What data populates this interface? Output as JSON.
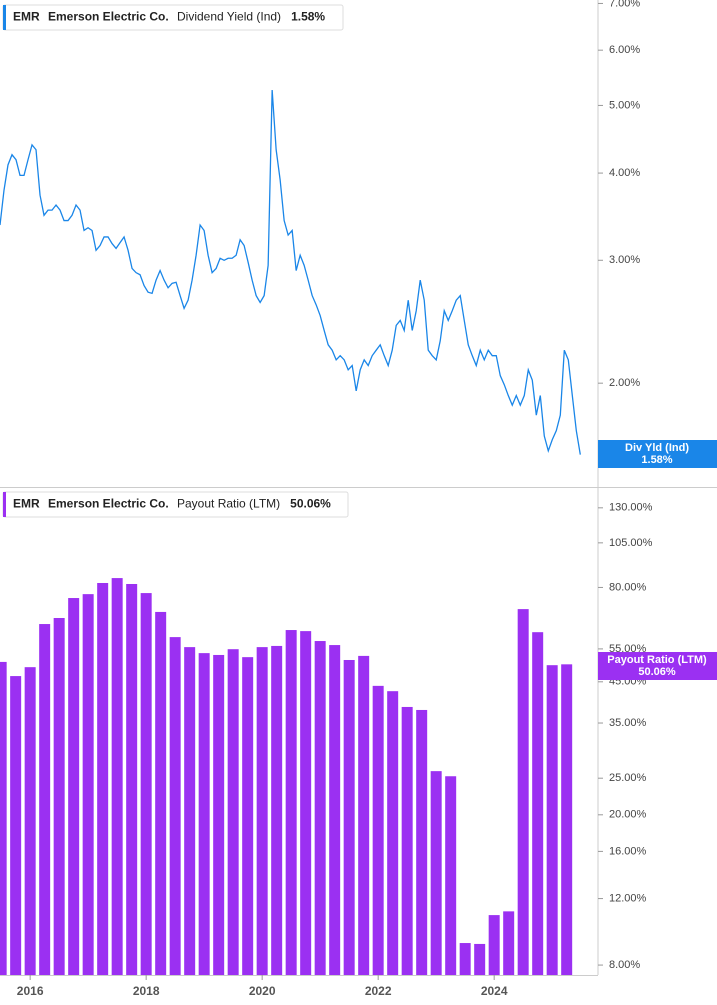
{
  "chart_data": [
    {
      "type": "line",
      "ticker": "EMR",
      "company": "Emerson Electric Co.",
      "badge_label": "Div Yld (Ind)",
      "last_label": "1.58%",
      "yscale": "log",
      "xlim": [
        2015.48,
        2025.79
      ],
      "ylim": [
        1.42,
        7.08
      ],
      "yticks": [
        {
          "value": 2,
          "label": "2.00%"
        },
        {
          "value": 3,
          "label": "3.00%"
        },
        {
          "value": 4,
          "label": "4.00%"
        },
        {
          "value": 5,
          "label": "5.00%"
        },
        {
          "value": 6,
          "label": "6.00%"
        },
        {
          "value": 7,
          "label": "7.00%"
        }
      ],
      "series": [
        {
          "name": "Dividend Yield (Ind)",
          "color": "#1a86e8",
          "x": [
            2015.48,
            2015.549,
            2015.618,
            2015.687,
            2015.756,
            2015.825,
            2015.894,
            2015.963,
            2016.032,
            2016.101,
            2016.17,
            2016.239,
            2016.308,
            2016.377,
            2016.446,
            2016.515,
            2016.584,
            2016.653,
            2016.722,
            2016.791,
            2016.86,
            2016.929,
            2016.998,
            2017.067,
            2017.136,
            2017.205,
            2017.274,
            2017.343,
            2017.412,
            2017.481,
            2017.55,
            2017.619,
            2017.688,
            2017.757,
            2017.826,
            2017.895,
            2017.964,
            2018.033,
            2018.102,
            2018.171,
            2018.24,
            2018.309,
            2018.378,
            2018.447,
            2018.516,
            2018.585,
            2018.654,
            2018.723,
            2018.792,
            2018.861,
            2018.93,
            2018.999,
            2019.068,
            2019.137,
            2019.206,
            2019.275,
            2019.344,
            2019.413,
            2019.482,
            2019.551,
            2019.62,
            2019.689,
            2019.758,
            2019.827,
            2019.896,
            2019.965,
            2020.034,
            2020.103,
            2020.172,
            2020.241,
            2020.31,
            2020.379,
            2020.448,
            2020.517,
            2020.586,
            2020.655,
            2020.724,
            2020.793,
            2020.862,
            2020.931,
            2021.0,
            2021.069,
            2021.138,
            2021.207,
            2021.276,
            2021.345,
            2021.414,
            2021.483,
            2021.552,
            2021.621,
            2021.69,
            2021.759,
            2021.828,
            2021.897,
            2021.966,
            2022.035,
            2022.104,
            2022.173,
            2022.242,
            2022.311,
            2022.38,
            2022.449,
            2022.518,
            2022.587,
            2022.656,
            2022.725,
            2022.794,
            2022.863,
            2022.932,
            2023.001,
            2023.07,
            2023.139,
            2023.208,
            2023.277,
            2023.346,
            2023.415,
            2023.484,
            2023.553,
            2023.622,
            2023.691,
            2023.76,
            2023.829,
            2023.898,
            2023.967,
            2024.036,
            2024.105,
            2024.174,
            2024.243,
            2024.312,
            2024.381,
            2024.45,
            2024.519,
            2024.588,
            2024.657,
            2024.726,
            2024.795,
            2024.864,
            2024.933,
            2025.002,
            2025.071,
            2025.14,
            2025.209,
            2025.278,
            2025.347,
            2025.416,
            2025.485
          ],
          "values": [
            3.37,
            3.78,
            4.11,
            4.25,
            4.18,
            3.97,
            3.97,
            4.18,
            4.39,
            4.32,
            3.72,
            3.48,
            3.54,
            3.54,
            3.6,
            3.54,
            3.42,
            3.42,
            3.48,
            3.6,
            3.54,
            3.31,
            3.34,
            3.31,
            3.1,
            3.15,
            3.24,
            3.24,
            3.17,
            3.12,
            3.18,
            3.24,
            3.1,
            2.92,
            2.88,
            2.86,
            2.76,
            2.7,
            2.69,
            2.81,
            2.9,
            2.81,
            2.74,
            2.78,
            2.79,
            2.67,
            2.56,
            2.63,
            2.81,
            3.05,
            3.37,
            3.31,
            3.05,
            2.88,
            2.92,
            3.02,
            3.0,
            3.02,
            3.02,
            3.05,
            3.21,
            3.15,
            2.98,
            2.81,
            2.67,
            2.61,
            2.67,
            2.95,
            5.26,
            4.32,
            3.91,
            3.42,
            3.26,
            3.31,
            2.9,
            3.05,
            2.95,
            2.81,
            2.67,
            2.59,
            2.5,
            2.38,
            2.27,
            2.23,
            2.16,
            2.19,
            2.16,
            2.09,
            2.12,
            1.95,
            2.09,
            2.16,
            2.12,
            2.19,
            2.23,
            2.27,
            2.19,
            2.12,
            2.23,
            2.42,
            2.46,
            2.38,
            2.63,
            2.38,
            2.54,
            2.81,
            2.63,
            2.23,
            2.19,
            2.16,
            2.3,
            2.54,
            2.46,
            2.54,
            2.63,
            2.67,
            2.46,
            2.27,
            2.19,
            2.12,
            2.23,
            2.16,
            2.23,
            2.19,
            2.19,
            2.05,
            1.99,
            1.92,
            1.86,
            1.92,
            1.86,
            1.92,
            2.09,
            2.02,
            1.8,
            1.92,
            1.68,
            1.6,
            1.66,
            1.71,
            1.8,
            2.23,
            2.16,
            1.92,
            1.71,
            1.58
          ]
        }
      ]
    },
    {
      "type": "bar",
      "ticker": "EMR",
      "company": "Emerson Electric Co.",
      "badge_label": "Payout Ratio (LTM)",
      "last_label": "50.06%",
      "yscale": "log",
      "xlim": [
        2015.48,
        2025.79
      ],
      "ylim": [
        7.53,
        146.7
      ],
      "xticks": [
        2016,
        2018,
        2020,
        2022,
        2024
      ],
      "yticks": [
        {
          "value": 8,
          "label": "8.00%"
        },
        {
          "value": 12,
          "label": "12.00%"
        },
        {
          "value": 16,
          "label": "16.00%"
        },
        {
          "value": 20,
          "label": "20.00%"
        },
        {
          "value": 25,
          "label": "25.00%"
        },
        {
          "value": 35,
          "label": "35.00%"
        },
        {
          "value": 45,
          "label": "45.00%"
        },
        {
          "value": 55,
          "label": "55.00%"
        },
        {
          "value": 80,
          "label": "80.00%"
        },
        {
          "value": 105,
          "label": "105.00%"
        },
        {
          "value": 130,
          "label": "130.00%"
        }
      ],
      "series": [
        {
          "name": "Payout Ratio (LTM)",
          "color": "#9b30f2",
          "x": [
            2015.5,
            2015.75,
            2016.0,
            2016.25,
            2016.5,
            2016.75,
            2017.0,
            2017.25,
            2017.5,
            2017.75,
            2018.0,
            2018.25,
            2018.5,
            2018.75,
            2019.0,
            2019.25,
            2019.5,
            2019.75,
            2020.0,
            2020.25,
            2020.5,
            2020.75,
            2021.0,
            2021.25,
            2021.5,
            2021.75,
            2022.0,
            2022.25,
            2022.5,
            2022.75,
            2023.0,
            2023.25,
            2023.5,
            2023.75,
            2024.0,
            2024.25,
            2024.5,
            2024.75,
            2025.0,
            2025.25
          ],
          "values": [
            50.8,
            46.6,
            49.2,
            64.0,
            66.4,
            75.0,
            76.8,
            82.2,
            84.7,
            81.7,
            77.3,
            68.9,
            59.1,
            55.6,
            53.6,
            53.0,
            54.9,
            52.3,
            55.6,
            56.0,
            61.7,
            61.3,
            57.7,
            56.3,
            51.4,
            52.7,
            43.9,
            42.5,
            38.6,
            37.9,
            26.1,
            25.3,
            9.15,
            9.1,
            10.85,
            11.1,
            70.1,
            60.9,
            49.8,
            50.06
          ]
        }
      ]
    }
  ]
}
